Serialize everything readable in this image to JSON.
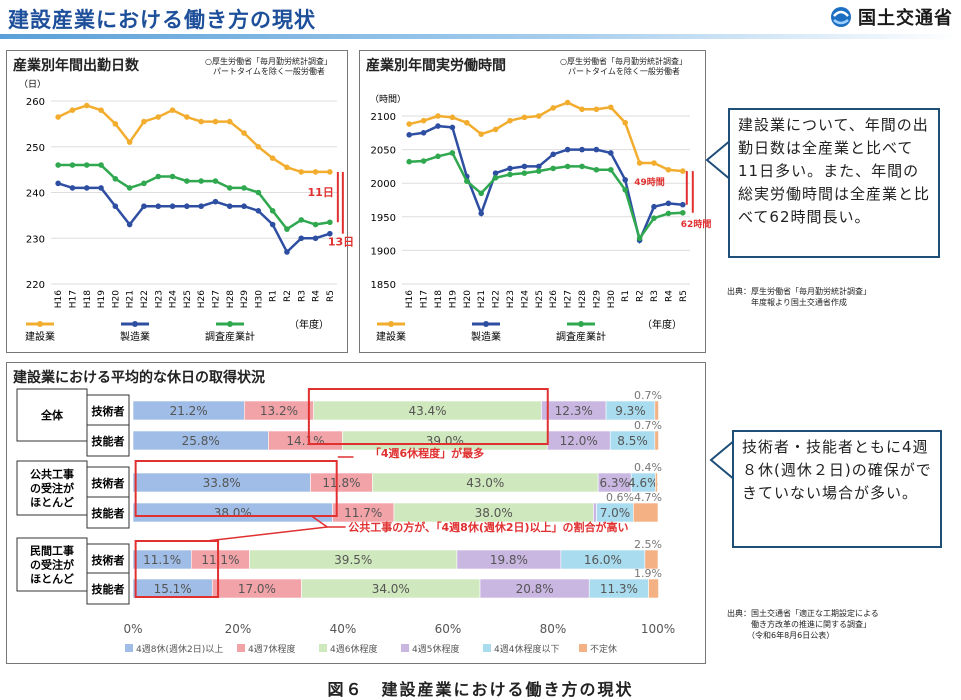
{
  "header": {
    "title": "建設産業における働き方の現状",
    "logo_text": "国土交通省",
    "logo_icon": "mlit-logo-icon"
  },
  "colors": {
    "construction": "#f2ad2f",
    "manufacturing": "#2e4ea2",
    "all_industry": "#2fa84f",
    "diff_arrow": "#e03030",
    "week8": "#9fbde6",
    "week7": "#f2a3a8",
    "week6": "#cfe8bd",
    "week5": "#c9b6e1",
    "week4": "#a9dcee",
    "undecided": "#f4b183",
    "highlight": "#e03030"
  },
  "panels": {
    "days": {
      "note": "○厚生労働省「毎月勤労統計調査」\n　パートタイムを除く一般労働者"
    },
    "hours": {
      "note": "○厚生労働省「毎月勤労統計調査」\n　パートタイムを除く一般労働者"
    },
    "holidays": {
      "group_labels": [
        "全体",
        "公共工事\nの受注が\nほとんど",
        "民間工事\nの受注が\nほとんど"
      ],
      "row_labels": [
        "技術者",
        "技能者",
        "技術者",
        "技能者",
        "技術者",
        "技能者"
      ],
      "annotation_top": "「4週6休程度」が最多",
      "annotation_mid": "公共工事の方が、「4週8休(週休2日)以上」の割合が高い"
    }
  },
  "callouts": {
    "days_hours": "建設業について、年間の出勤日数は全産業と比べて11日多い。また、年間の総実労働時間は全産業と比べて62時間長い。",
    "holidays": "技術者・技能者ともに4週８休(週休２日)の確保ができていない場合が多い。"
  },
  "sources": {
    "top": "出典：厚生労働省「毎月勤労統計調査」\n　　　年度報より国土交通省作成",
    "bottom": "出典：国土交通省「適正な工期設定による\n　　　働き方改革の推進に関する調査」\n　　　（令和6年8月6日公表）"
  },
  "caption": "図６　建設産業における働き方の現状",
  "chart_data": [
    {
      "type": "line",
      "title": "産業別年間出勤日数",
      "ylabel": "（日）",
      "xlabel": "（年度）",
      "ylim": [
        220,
        260
      ],
      "yticks": [
        220,
        230,
        240,
        250,
        260
      ],
      "categories": [
        "H16",
        "H17",
        "H18",
        "H19",
        "H20",
        "H21",
        "H22",
        "H23",
        "H24",
        "H25",
        "H26",
        "H27",
        "H28",
        "H29",
        "H30",
        "R1",
        "R2",
        "R3",
        "R4",
        "R5"
      ],
      "series": [
        {
          "name": "建設業",
          "color": "#f2ad2f",
          "values": [
            256.5,
            258,
            259,
            258,
            255,
            251,
            255.5,
            256.5,
            258,
            256.5,
            255.5,
            255.5,
            255.5,
            253,
            250,
            247.5,
            245.5,
            244.5,
            244.5,
            244.5
          ]
        },
        {
          "name": "製造業",
          "color": "#2e4ea2",
          "values": [
            242,
            241,
            241,
            241,
            237,
            233,
            237,
            237,
            237,
            237,
            237,
            238,
            237,
            237,
            236,
            233,
            227,
            230,
            230,
            231
          ]
        },
        {
          "name": "調査産業計",
          "color": "#2fa84f",
          "values": [
            246,
            246,
            246,
            246,
            243,
            241,
            242,
            243.5,
            243.5,
            242.5,
            242.5,
            242.5,
            241,
            241,
            240,
            236,
            232,
            234,
            233,
            233.5
          ]
        }
      ],
      "annotations": [
        "11日",
        "13日"
      ]
    },
    {
      "type": "line",
      "title": "産業別年間実労働時間",
      "ylabel": "（時間）",
      "xlabel": "（年度）",
      "ylim": [
        1850,
        2100
      ],
      "yticks": [
        1850,
        1900,
        1950,
        2000,
        2050,
        2100
      ],
      "categories": [
        "H16",
        "H17",
        "H18",
        "H19",
        "H20",
        "H21",
        "H22",
        "H23",
        "H24",
        "H25",
        "H26",
        "H27",
        "H28",
        "H29",
        "H30",
        "R1",
        "R2",
        "R3",
        "R4",
        "R5"
      ],
      "series": [
        {
          "name": "建設業",
          "color": "#f2ad2f",
          "values": [
            2088,
            2093,
            2100,
            2098,
            2090,
            2073,
            2080,
            2093,
            2098,
            2100,
            2112,
            2120,
            2110,
            2110,
            2113,
            2090,
            2030,
            2030,
            2020,
            2018
          ]
        },
        {
          "name": "製造業",
          "color": "#2e4ea2",
          "values": [
            2072,
            2075,
            2085,
            2083,
            2010,
            1955,
            2015,
            2022,
            2025,
            2025,
            2043,
            2050,
            2050,
            2050,
            2045,
            2005,
            1915,
            1965,
            1970,
            1968
          ]
        },
        {
          "name": "調査産業計",
          "color": "#2fa84f",
          "values": [
            2032,
            2033,
            2040,
            2045,
            2003,
            1985,
            2008,
            2013,
            2015,
            2018,
            2022,
            2025,
            2025,
            2020,
            2020,
            1990,
            1918,
            1948,
            1955,
            1956
          ]
        }
      ],
      "annotations": [
        "49時間",
        "62時間"
      ]
    },
    {
      "type": "bar",
      "orientation": "horizontal",
      "stacked": true,
      "title": "建設業における平均的な休日の取得状況",
      "xlim": [
        0,
        100
      ],
      "xticks": [
        "0%",
        "20%",
        "40%",
        "60%",
        "80%",
        "100%"
      ],
      "categories": [
        "全体 技術者",
        "全体 技能者",
        "公共工事 技術者",
        "公共工事 技能者",
        "民間工事 技術者",
        "民間工事 技能者"
      ],
      "series": [
        {
          "name": "4週8休(週休2日)以上",
          "color": "#9fbde6",
          "values": [
            21.2,
            25.8,
            33.8,
            38.0,
            11.1,
            15.1
          ]
        },
        {
          "name": "4週7休程度",
          "color": "#f2a3a8",
          "values": [
            13.2,
            14.1,
            11.8,
            11.7,
            11.1,
            17.0
          ]
        },
        {
          "name": "4週6休程度",
          "color": "#cfe8bd",
          "values": [
            43.4,
            39.0,
            43.0,
            38.0,
            39.5,
            34.0
          ]
        },
        {
          "name": "4週5休程度",
          "color": "#c9b6e1",
          "values": [
            12.3,
            12.0,
            6.3,
            0.6,
            19.8,
            20.8
          ]
        },
        {
          "name": "4週4休程度以下",
          "color": "#a9dcee",
          "values": [
            9.3,
            8.5,
            4.6,
            7.0,
            16.0,
            11.3
          ]
        },
        {
          "name": "不定休",
          "color": "#f4b183",
          "values": [
            0.7,
            0.7,
            0.4,
            4.7,
            2.5,
            1.9
          ]
        }
      ],
      "labels": [
        [
          "21.2%",
          "13.2%",
          "43.4%",
          "12.3%",
          "9.3%",
          "0.7%"
        ],
        [
          "25.8%",
          "14.1%",
          "39.0%",
          "12.0%",
          "8.5%",
          "0.7%"
        ],
        [
          "33.8%",
          "11.8%",
          "43.0%",
          "6.3%",
          "4.6%",
          "0.4%"
        ],
        [
          "38.0%",
          "11.7%",
          "38.0%",
          "0.6%",
          "7.0%",
          "4.7%"
        ],
        [
          "11.1%",
          "11.1%",
          "39.5%",
          "19.8%",
          "16.0%",
          "2.5%"
        ],
        [
          "15.1%",
          "17.0%",
          "34.0%",
          "20.8%",
          "11.3%",
          "1.9%"
        ]
      ]
    }
  ]
}
